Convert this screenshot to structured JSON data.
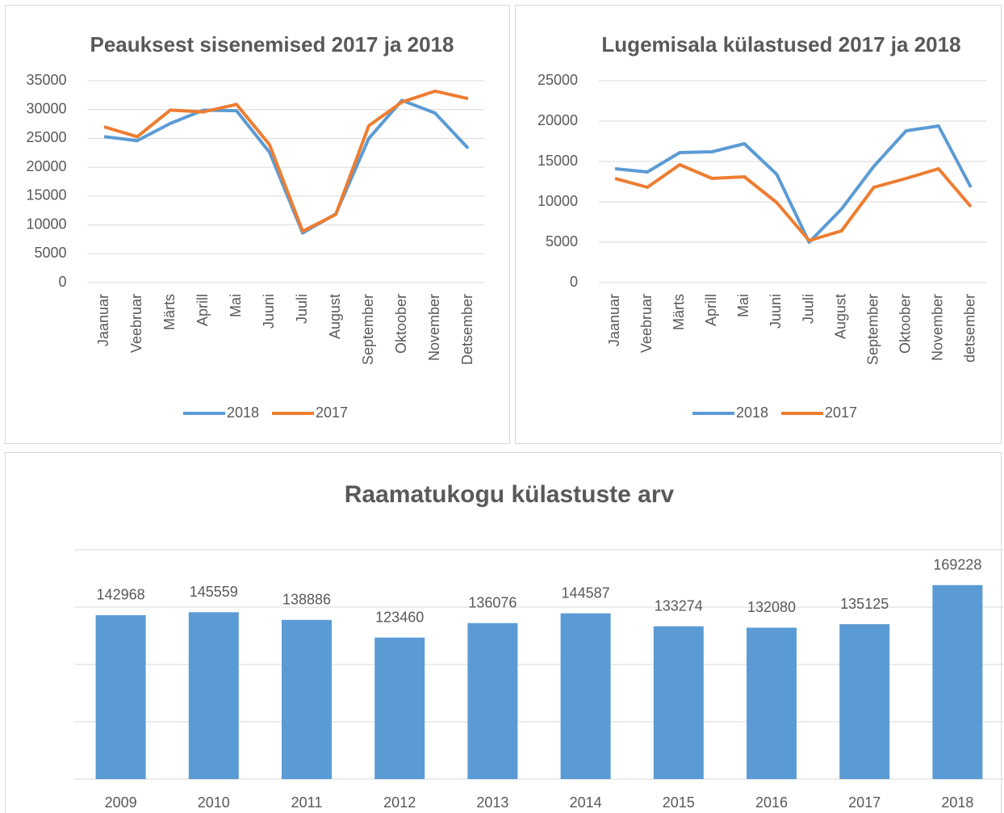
{
  "chart_data": [
    {
      "type": "line",
      "title": "Peauksest sisenemised 2017 ja 2018",
      "categories": [
        "Jaanuar",
        "Veebruar",
        "Märts",
        "Aprill",
        "Mai",
        "Juuni",
        "Juuli",
        "August",
        "September",
        "Oktoober",
        "November",
        "Detsember"
      ],
      "series": [
        {
          "name": "2018",
          "color": "#5b9bd5",
          "values": [
            25300,
            24600,
            27600,
            29900,
            29800,
            22600,
            8600,
            11900,
            25000,
            31600,
            29400,
            23300
          ]
        },
        {
          "name": "2017",
          "color": "#ed7d31",
          "values": [
            27000,
            25300,
            29900,
            29600,
            30900,
            23900,
            8900,
            11800,
            27200,
            31300,
            33200,
            31900
          ]
        }
      ],
      "ylim": [
        0,
        35000
      ],
      "yticks": [
        0,
        5000,
        10000,
        15000,
        20000,
        25000,
        30000,
        35000
      ],
      "grid": true,
      "legend": "bottom"
    },
    {
      "type": "line",
      "title": "Lugemisala külastused 2017 ja 2018",
      "categories": [
        "Jaanuar",
        "Veebruar",
        "Märts",
        "Aprill",
        "Mai",
        "Juuni",
        "Juuli",
        "August",
        "September",
        "Oktoober",
        "November",
        "detsember"
      ],
      "series": [
        {
          "name": "2018",
          "color": "#5b9bd5",
          "values": [
            14100,
            13700,
            16100,
            16200,
            17200,
            13400,
            5000,
            9100,
            14400,
            18800,
            19400,
            11800
          ]
        },
        {
          "name": "2017",
          "color": "#ed7d31",
          "values": [
            12900,
            11800,
            14600,
            12900,
            13100,
            9900,
            5200,
            6400,
            11800,
            12900,
            14100,
            9400
          ]
        }
      ],
      "ylim": [
        0,
        25000
      ],
      "yticks": [
        0,
        5000,
        10000,
        15000,
        20000,
        25000
      ],
      "grid": true,
      "legend": "bottom"
    },
    {
      "type": "bar",
      "title": "Raamatukogu külastuste arv",
      "categories": [
        "2009",
        "2010",
        "2011",
        "2012",
        "2013",
        "2014",
        "2015",
        "2016",
        "2017",
        "2018"
      ],
      "values": [
        142968,
        145559,
        138886,
        123460,
        136076,
        144587,
        133274,
        132080,
        135125,
        169228
      ],
      "color": "#5b9bd5",
      "ylim": [
        0,
        200000
      ],
      "yticks": [
        0,
        50000,
        100000,
        150000,
        200000
      ],
      "grid": true
    }
  ]
}
